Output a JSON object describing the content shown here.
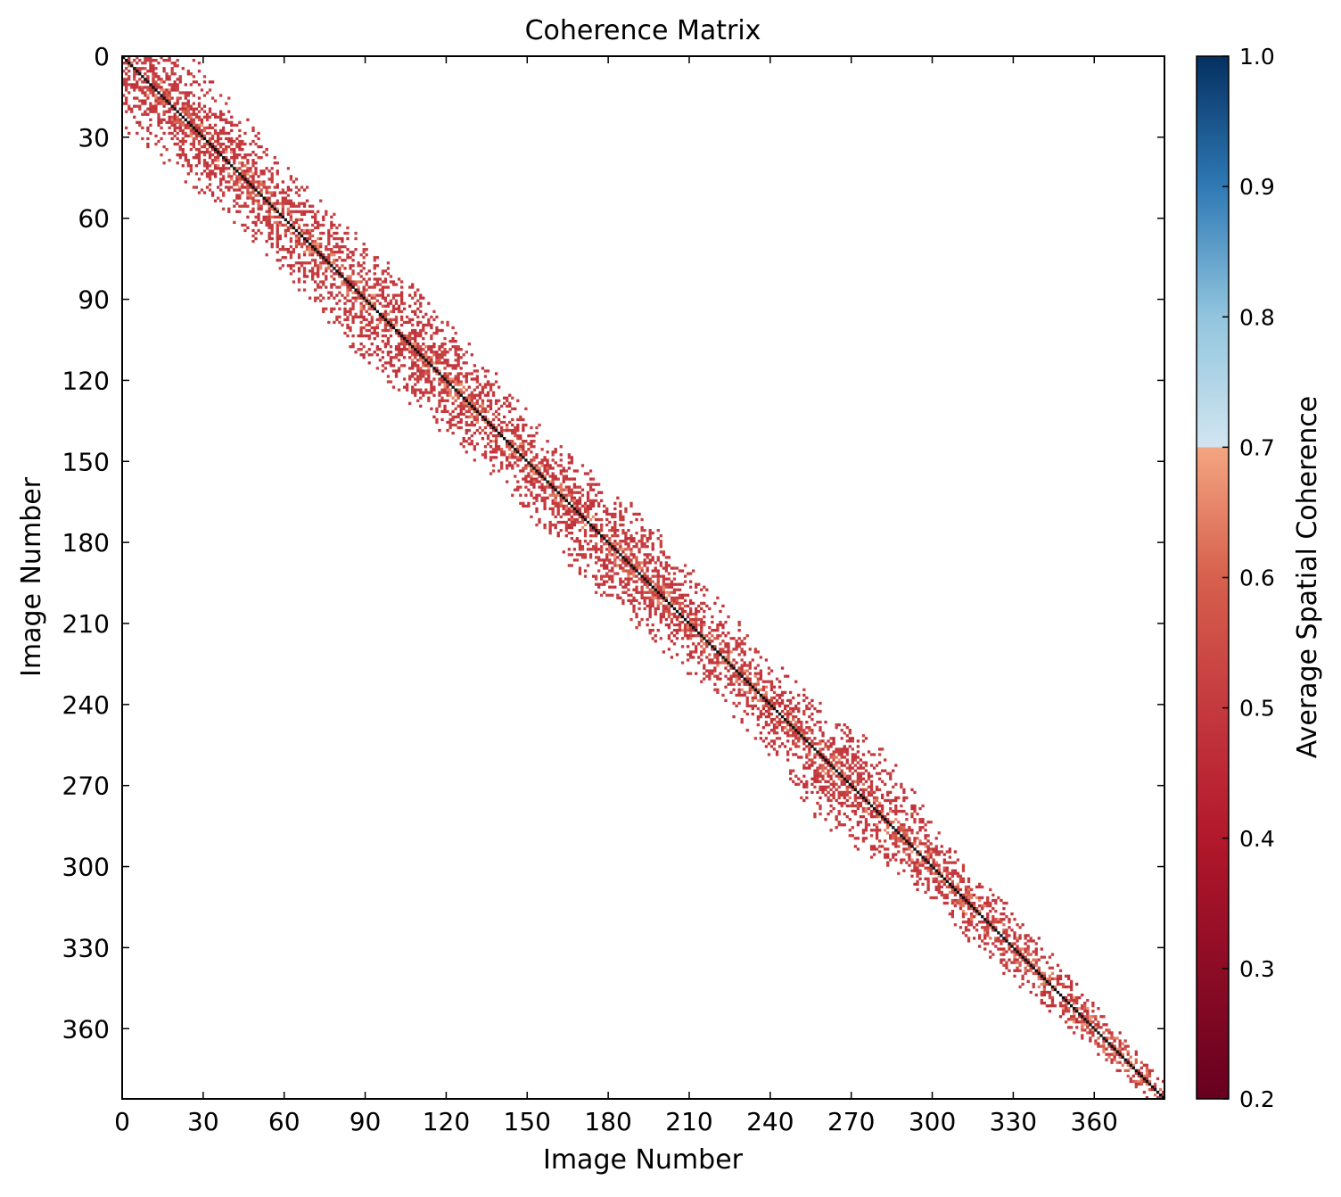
{
  "chart_data": {
    "type": "heatmap",
    "title": "Coherence Matrix",
    "xlabel": "Image Number",
    "ylabel": "Image Number",
    "n_images": 386,
    "xlim": [
      0,
      386
    ],
    "ylim": [
      386,
      0
    ],
    "x_ticks": [
      0,
      30,
      60,
      90,
      120,
      150,
      180,
      210,
      240,
      270,
      300,
      330,
      360
    ],
    "y_ticks": [
      0,
      30,
      60,
      90,
      120,
      150,
      180,
      210,
      240,
      270,
      300,
      330,
      360
    ],
    "diagonal_value": 1.0,
    "masked_below": 0.45,
    "band_half_width_profile": [
      {
        "image": 0,
        "half_width": 28
      },
      {
        "image": 30,
        "half_width": 24
      },
      {
        "image": 60,
        "half_width": 20
      },
      {
        "image": 90,
        "half_width": 24
      },
      {
        "image": 120,
        "half_width": 22
      },
      {
        "image": 150,
        "half_width": 18
      },
      {
        "image": 180,
        "half_width": 24
      },
      {
        "image": 210,
        "half_width": 20
      },
      {
        "image": 240,
        "half_width": 18
      },
      {
        "image": 270,
        "half_width": 26
      },
      {
        "image": 300,
        "half_width": 14
      },
      {
        "image": 330,
        "half_width": 14
      },
      {
        "image": 360,
        "half_width": 9
      },
      {
        "image": 386,
        "half_width": 7
      }
    ],
    "colorbar": {
      "label": "Average Spatial Coherence",
      "range": [
        0.2,
        1.0
      ],
      "ticks": [
        0.2,
        0.3,
        0.4,
        0.5,
        0.6,
        0.7,
        0.8,
        0.9,
        1.0
      ],
      "colormap": "RdBu",
      "break_at": 0.7,
      "stops": [
        {
          "value": 0.2,
          "color": "#67001f"
        },
        {
          "value": 0.4,
          "color": "#b2182b"
        },
        {
          "value": 0.5,
          "color": "#c4393e"
        },
        {
          "value": 0.6,
          "color": "#d6604d"
        },
        {
          "value": 0.7,
          "color": "#f4a582"
        },
        {
          "value": 0.7001,
          "color": "#d1e5f0"
        },
        {
          "value": 0.8,
          "color": "#92c5de"
        },
        {
          "value": 0.9,
          "color": "#2f79b5"
        },
        {
          "value": 1.0,
          "color": "#053061"
        }
      ]
    }
  }
}
